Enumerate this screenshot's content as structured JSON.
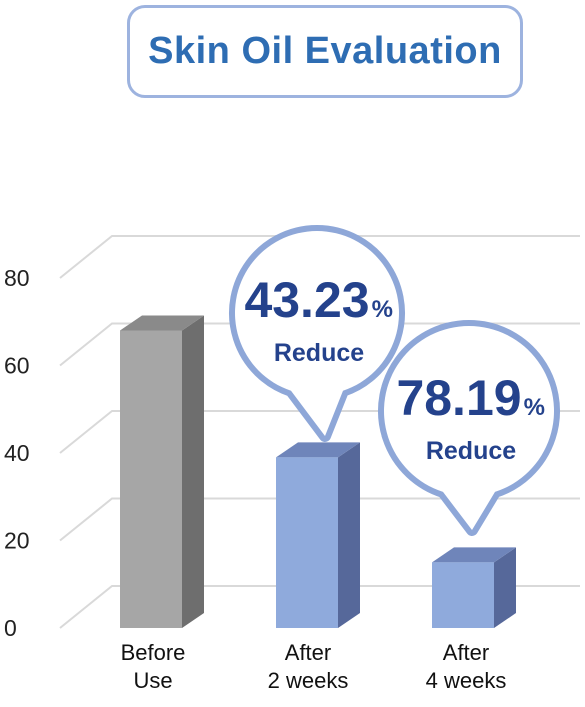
{
  "chart_data": {
    "type": "bar",
    "title": "Skin Oil Evaluation",
    "categories": [
      [
        "Before",
        "Use"
      ],
      [
        "After",
        "2 weeks"
      ],
      [
        "After",
        "4 weeks"
      ]
    ],
    "values": [
      68,
      39,
      15
    ],
    "ylim": [
      0,
      80
    ],
    "yticks": [
      "0",
      "20",
      "40",
      "60",
      "80"
    ],
    "grid": true,
    "colors": {
      "before_front": "#a6a6a6",
      "before_side": "#6e6e6e",
      "before_top": "#8a8a8a",
      "after_front": "#8faadc",
      "after_side": "#56689a",
      "after_top": "#6f85ba",
      "bubble_border": "#8ea7d8",
      "callout_text": "#24428c",
      "title_text": "#2e6db3"
    },
    "annotations": [
      {
        "bar": 1,
        "value": "43.23",
        "unit": "%",
        "label": "Reduce"
      },
      {
        "bar": 2,
        "value": "78.19",
        "unit": "%",
        "label": "Reduce"
      }
    ]
  }
}
